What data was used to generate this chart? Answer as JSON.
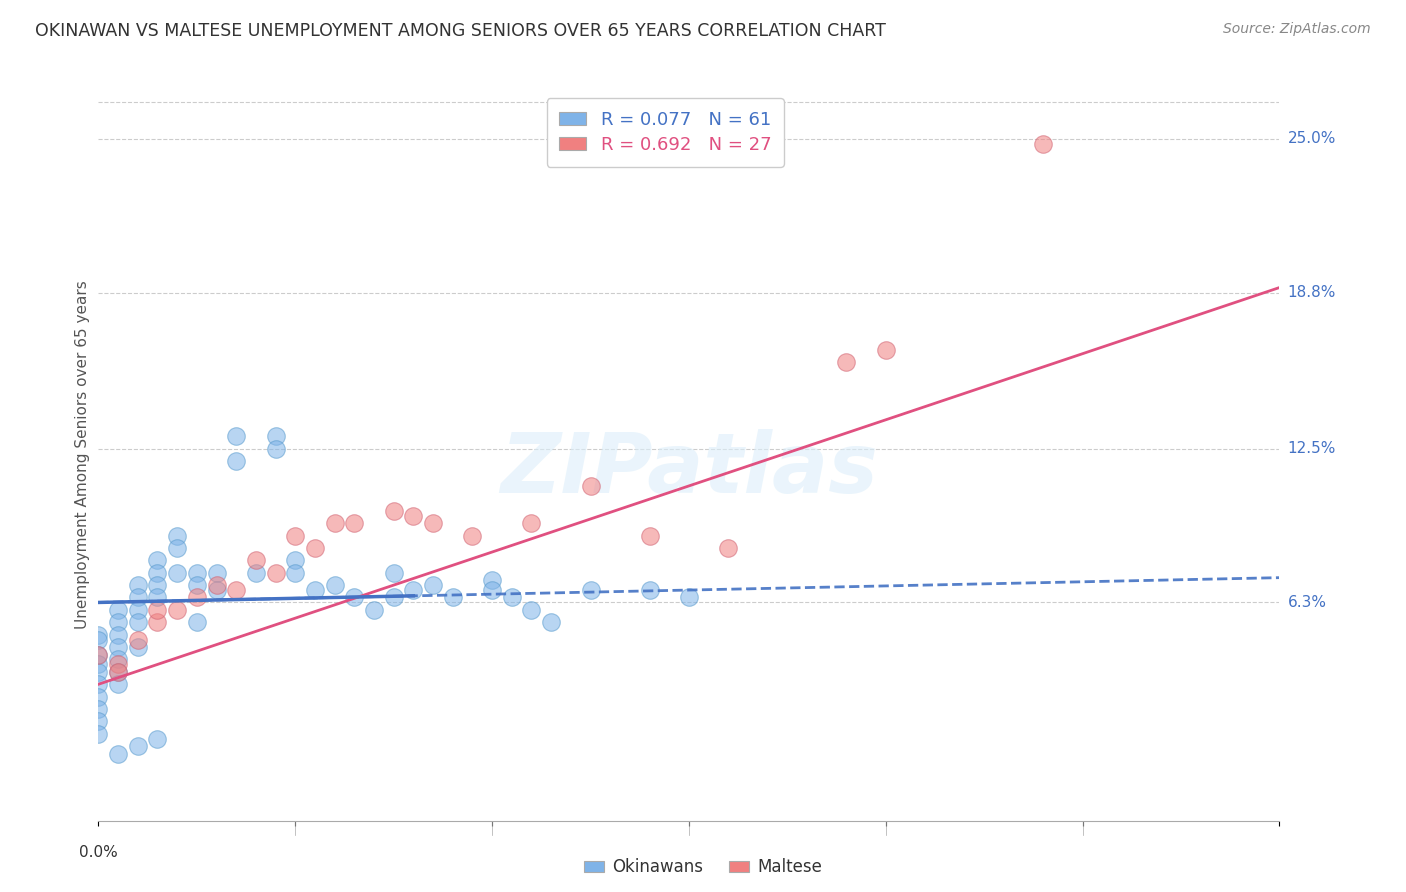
{
  "title": "OKINAWAN VS MALTESE UNEMPLOYMENT AMONG SENIORS OVER 65 YEARS CORRELATION CHART",
  "source": "Source: ZipAtlas.com",
  "ylabel": "Unemployment Among Seniors over 65 years",
  "right_yticks": [
    "25.0%",
    "18.8%",
    "12.5%",
    "6.3%"
  ],
  "right_ytick_vals": [
    0.25,
    0.188,
    0.125,
    0.063
  ],
  "xmin": 0.0,
  "xmax": 0.06,
  "ymin": -0.025,
  "ymax": 0.27,
  "okinawan_color": "#7fb3e8",
  "maltese_color": "#f08080",
  "okinawan_line_color": "#4472C4",
  "maltese_line_color": "#E05080",
  "okinawan_R": 0.077,
  "okinawan_N": 61,
  "maltese_R": 0.692,
  "maltese_N": 27,
  "watermark_text": "ZIPatlas",
  "legend_label_okinawan": "Okinawans",
  "legend_label_maltese": "Maltese",
  "ok_x": [
    0.0,
    0.0,
    0.0,
    0.0,
    0.0,
    0.0,
    0.0,
    0.0,
    0.0,
    0.0,
    0.001,
    0.001,
    0.001,
    0.001,
    0.001,
    0.001,
    0.001,
    0.002,
    0.002,
    0.002,
    0.002,
    0.002,
    0.003,
    0.003,
    0.003,
    0.003,
    0.004,
    0.004,
    0.004,
    0.005,
    0.005,
    0.005,
    0.006,
    0.006,
    0.007,
    0.007,
    0.008,
    0.009,
    0.009,
    0.01,
    0.01,
    0.011,
    0.012,
    0.013,
    0.014,
    0.015,
    0.015,
    0.016,
    0.017,
    0.018,
    0.02,
    0.02,
    0.021,
    0.022,
    0.023,
    0.025,
    0.028,
    0.03,
    0.003,
    0.002,
    0.001
  ],
  "ok_y": [
    0.05,
    0.048,
    0.042,
    0.038,
    0.035,
    0.03,
    0.025,
    0.02,
    0.015,
    0.01,
    0.06,
    0.055,
    0.05,
    0.045,
    0.04,
    0.035,
    0.03,
    0.07,
    0.065,
    0.06,
    0.055,
    0.045,
    0.08,
    0.075,
    0.07,
    0.065,
    0.09,
    0.085,
    0.075,
    0.075,
    0.07,
    0.055,
    0.075,
    0.068,
    0.13,
    0.12,
    0.075,
    0.13,
    0.125,
    0.08,
    0.075,
    0.068,
    0.07,
    0.065,
    0.06,
    0.075,
    0.065,
    0.068,
    0.07,
    0.065,
    0.072,
    0.068,
    0.065,
    0.06,
    0.055,
    0.068,
    0.068,
    0.065,
    0.008,
    0.005,
    0.002
  ],
  "ma_x": [
    0.0,
    0.001,
    0.001,
    0.002,
    0.003,
    0.003,
    0.004,
    0.005,
    0.006,
    0.007,
    0.008,
    0.009,
    0.01,
    0.011,
    0.012,
    0.013,
    0.015,
    0.016,
    0.017,
    0.019,
    0.022,
    0.025,
    0.028,
    0.032,
    0.038,
    0.04,
    0.048
  ],
  "ma_y": [
    0.042,
    0.038,
    0.035,
    0.048,
    0.055,
    0.06,
    0.06,
    0.065,
    0.07,
    0.068,
    0.08,
    0.075,
    0.09,
    0.085,
    0.095,
    0.095,
    0.1,
    0.098,
    0.095,
    0.09,
    0.095,
    0.11,
    0.09,
    0.085,
    0.16,
    0.165,
    0.248
  ],
  "ok_trend": [
    0.063,
    0.073
  ],
  "ma_trend": [
    0.03,
    0.19
  ]
}
